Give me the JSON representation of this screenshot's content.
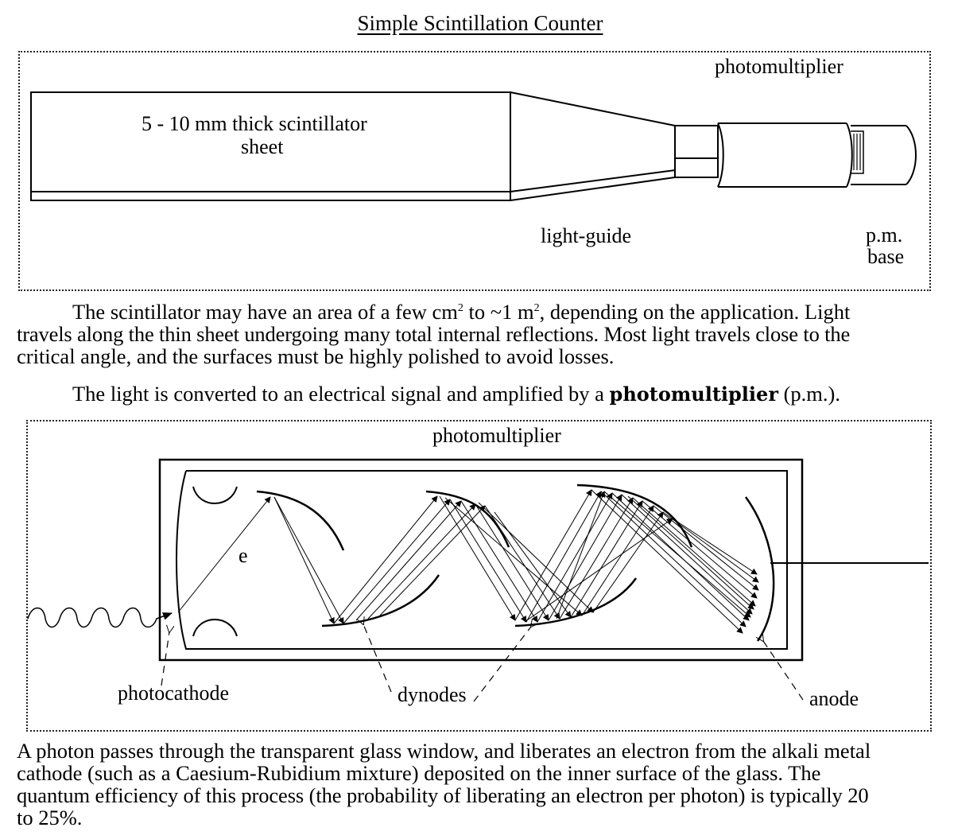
{
  "title": "Simple Scintillation Counter",
  "fig1": {
    "photomultiplier": "photomultiplier",
    "scintillator_line1": "5 - 10 mm thick scintillator",
    "scintillator_line2": "sheet",
    "light_guide": "light-guide",
    "pm_base_line1": "p.m.",
    "pm_base_line2": "base"
  },
  "para1": {
    "line1_a": "The scintillator may have an area of a few cm",
    "sup1": "2",
    "line1_b": " to ~1 m",
    "sup2": "2",
    "line1_c": ", depending on the application.  Light",
    "line2": "travels along the thin sheet undergoing many total internal reflections.  Most light travels close to the",
    "line3": "critical angle, and the surfaces must be highly polished to avoid losses."
  },
  "para2": {
    "text_a": "The light is converted to an electrical signal and amplified by a ",
    "bold": "photomultiplier",
    "text_b": " (p.m.)."
  },
  "fig2": {
    "photomultiplier": "photomultiplier",
    "electron": "e",
    "photocathode": "photocathode",
    "dynodes": "dynodes",
    "anode": "anode"
  },
  "para3": {
    "line1": "A photon passes through the transparent glass window, and liberates an electron from the alkali metal",
    "line2": "cathode (such as a Caesium-Rubidium mixture) deposited on the inner surface of the glass.  The",
    "line3": "quantum efficiency of this process (the probability of liberating an electron per photon) is typically 20",
    "line4": "to 25%."
  }
}
